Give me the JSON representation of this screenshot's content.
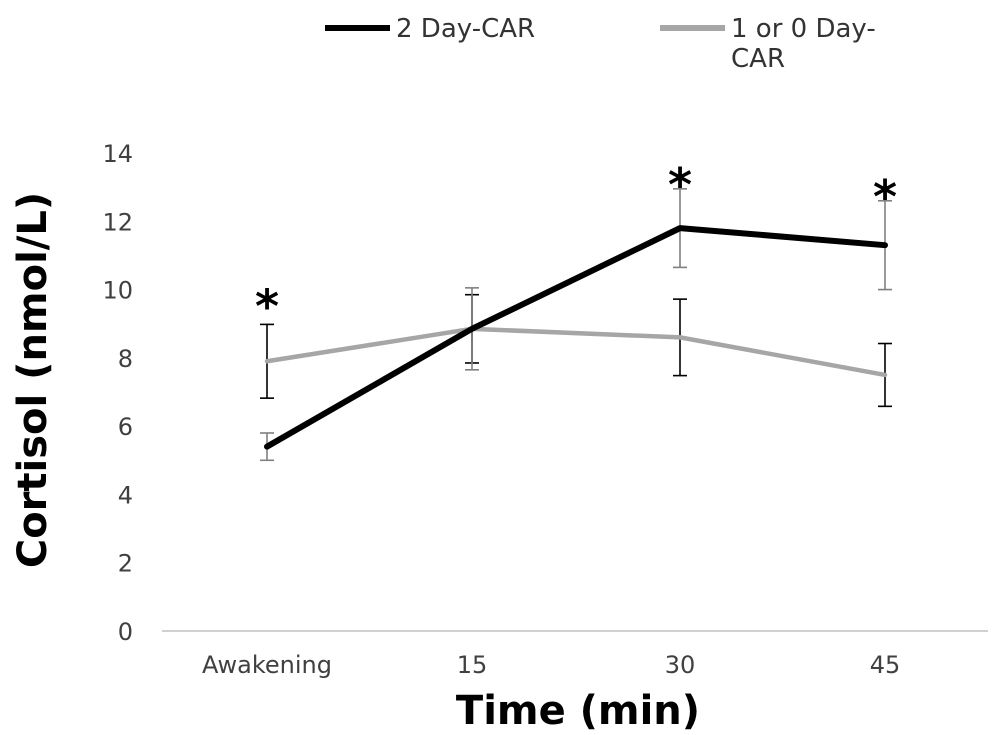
{
  "chart_data": {
    "type": "line",
    "title": "",
    "xlabel": "Time (min)",
    "ylabel": "Cortisol (nmol/L)",
    "categories": [
      "Awakening",
      "15",
      "30",
      "45"
    ],
    "ylim": [
      0,
      14
    ],
    "yticks": [
      "0",
      "2",
      "4",
      "6",
      "8",
      "10",
      "12",
      "14"
    ],
    "grid": false,
    "legend": "top",
    "series": [
      {
        "name": "2 Day-CAR",
        "color": "#000000",
        "values": [
          5.4,
          8.85,
          11.8,
          11.3
        ],
        "error": [
          0.4,
          1.2,
          1.15,
          1.3
        ],
        "error_color": "#808080"
      },
      {
        "name": "1 or 0 Day-CAR",
        "name_line1": "1 or 0 Day-",
        "name_line2": "CAR",
        "color": "#a6a6a6",
        "values": [
          7.9,
          8.85,
          8.6,
          7.5
        ],
        "error": [
          1.08,
          1.0,
          1.12,
          0.92
        ],
        "error_color": "#000000"
      }
    ],
    "annotations": [
      {
        "category": "Awakening",
        "text": "*",
        "y": 9.8
      },
      {
        "category": "30",
        "text": "*",
        "y": 13.35
      },
      {
        "category": "45",
        "text": "*",
        "y": 13.0
      }
    ]
  }
}
